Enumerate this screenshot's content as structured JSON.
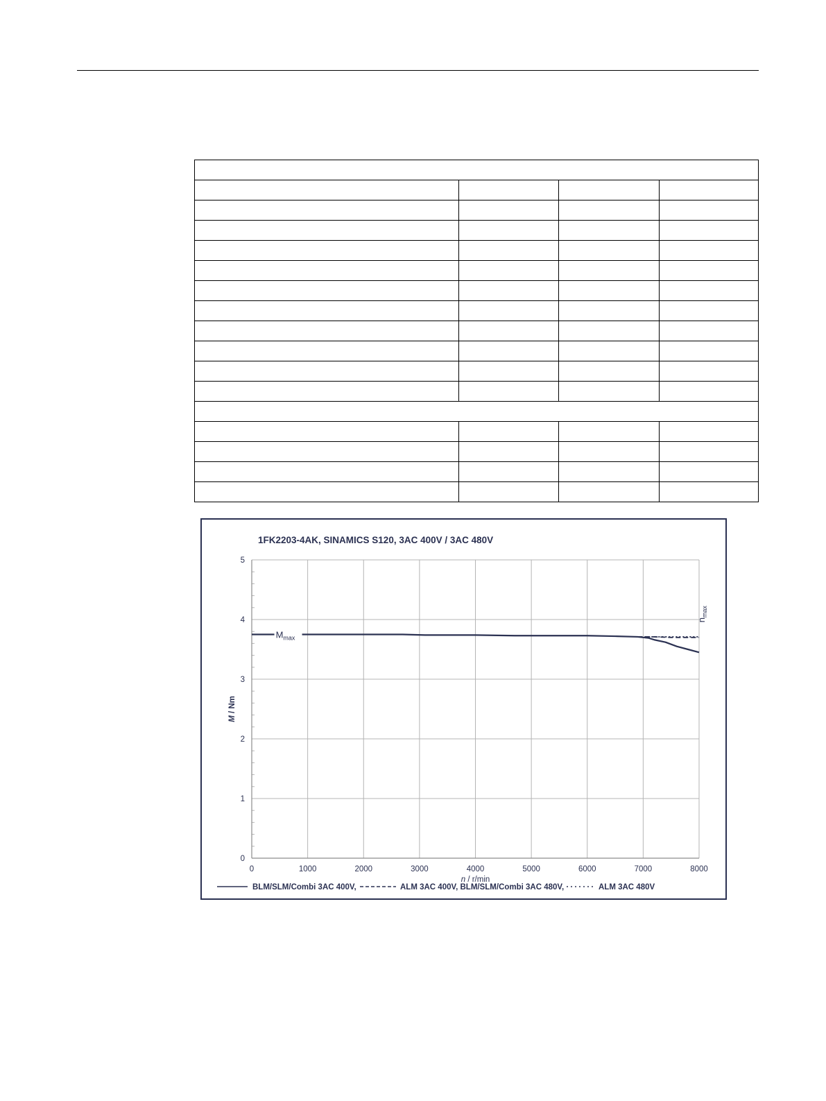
{
  "table": {
    "rows": [
      {
        "span": true,
        "cells": [
          ""
        ]
      },
      {
        "span": false,
        "cells": [
          "",
          "",
          "",
          ""
        ]
      },
      {
        "span": false,
        "cells": [
          "",
          "",
          "",
          ""
        ]
      },
      {
        "span": false,
        "cells": [
          "",
          "",
          "",
          ""
        ]
      },
      {
        "span": false,
        "cells": [
          "",
          "",
          "",
          ""
        ]
      },
      {
        "span": false,
        "cells": [
          "",
          "",
          "",
          ""
        ]
      },
      {
        "span": false,
        "cells": [
          "",
          "",
          "",
          ""
        ]
      },
      {
        "span": false,
        "cells": [
          "",
          "",
          "",
          ""
        ]
      },
      {
        "span": false,
        "cells": [
          "",
          "",
          "",
          ""
        ]
      },
      {
        "span": false,
        "cells": [
          "",
          "",
          "",
          ""
        ]
      },
      {
        "span": false,
        "cells": [
          "",
          "",
          "",
          ""
        ]
      },
      {
        "span": false,
        "cells": [
          "",
          "",
          "",
          ""
        ]
      },
      {
        "span": true,
        "cells": [
          ""
        ]
      },
      {
        "span": false,
        "cells": [
          "",
          "",
          "",
          ""
        ]
      },
      {
        "span": false,
        "cells": [
          "",
          "",
          "",
          ""
        ]
      },
      {
        "span": false,
        "cells": [
          "",
          "",
          "",
          ""
        ]
      },
      {
        "span": false,
        "cells": [
          "",
          "",
          "",
          ""
        ]
      }
    ]
  },
  "chart_data": {
    "type": "line",
    "title": "1FK2203-4AK,  SINAMICS S120,  3AC 400V / 3AC 480V",
    "xlabel_italic": "n",
    "xlabel_rest": " / r/min",
    "ylabel_italic": "M",
    "ylabel_rest": " / Nm",
    "xlim": [
      0,
      8000
    ],
    "ylim": [
      0,
      5
    ],
    "xticks": [
      0,
      1000,
      2000,
      3000,
      4000,
      5000,
      6000,
      7000,
      8000
    ],
    "yticks": [
      0,
      1,
      2,
      3,
      4,
      5
    ],
    "grid": true,
    "legend_position": "bottom",
    "colors": {
      "line": "#2b3152",
      "grid": "#b4b4b4",
      "frame": "#2b3152"
    },
    "series": [
      {
        "name": "BLM/SLM/Combi 3AC 400V,",
        "style": "solid",
        "x": [
          0,
          1000,
          2000,
          2700,
          3100,
          4000,
          4700,
          5000,
          6000,
          6500,
          6900,
          7100,
          7200,
          7400,
          7600,
          7800,
          8000
        ],
        "y": [
          3.75,
          3.75,
          3.75,
          3.75,
          3.74,
          3.74,
          3.73,
          3.73,
          3.73,
          3.72,
          3.71,
          3.69,
          3.66,
          3.62,
          3.55,
          3.5,
          3.45
        ]
      },
      {
        "name": "ALM 3AC 400V, BLM/SLM/Combi 3AC 480V,",
        "style": "dashed",
        "x": [
          6900,
          7200,
          7500,
          8000
        ],
        "y": [
          3.71,
          3.71,
          3.7,
          3.7
        ]
      },
      {
        "name": "ALM 3AC 480V",
        "style": "dotted",
        "x": [
          6900,
          7200,
          7500,
          8000
        ],
        "y": [
          3.71,
          3.71,
          3.71,
          3.71
        ]
      }
    ],
    "annotations": {
      "mmax": {
        "main": "M",
        "sub": "max",
        "x": 900,
        "y": 3.75
      },
      "nmax": {
        "main": "n",
        "sub": "max",
        "x": 8000,
        "y": 3.95
      }
    }
  }
}
